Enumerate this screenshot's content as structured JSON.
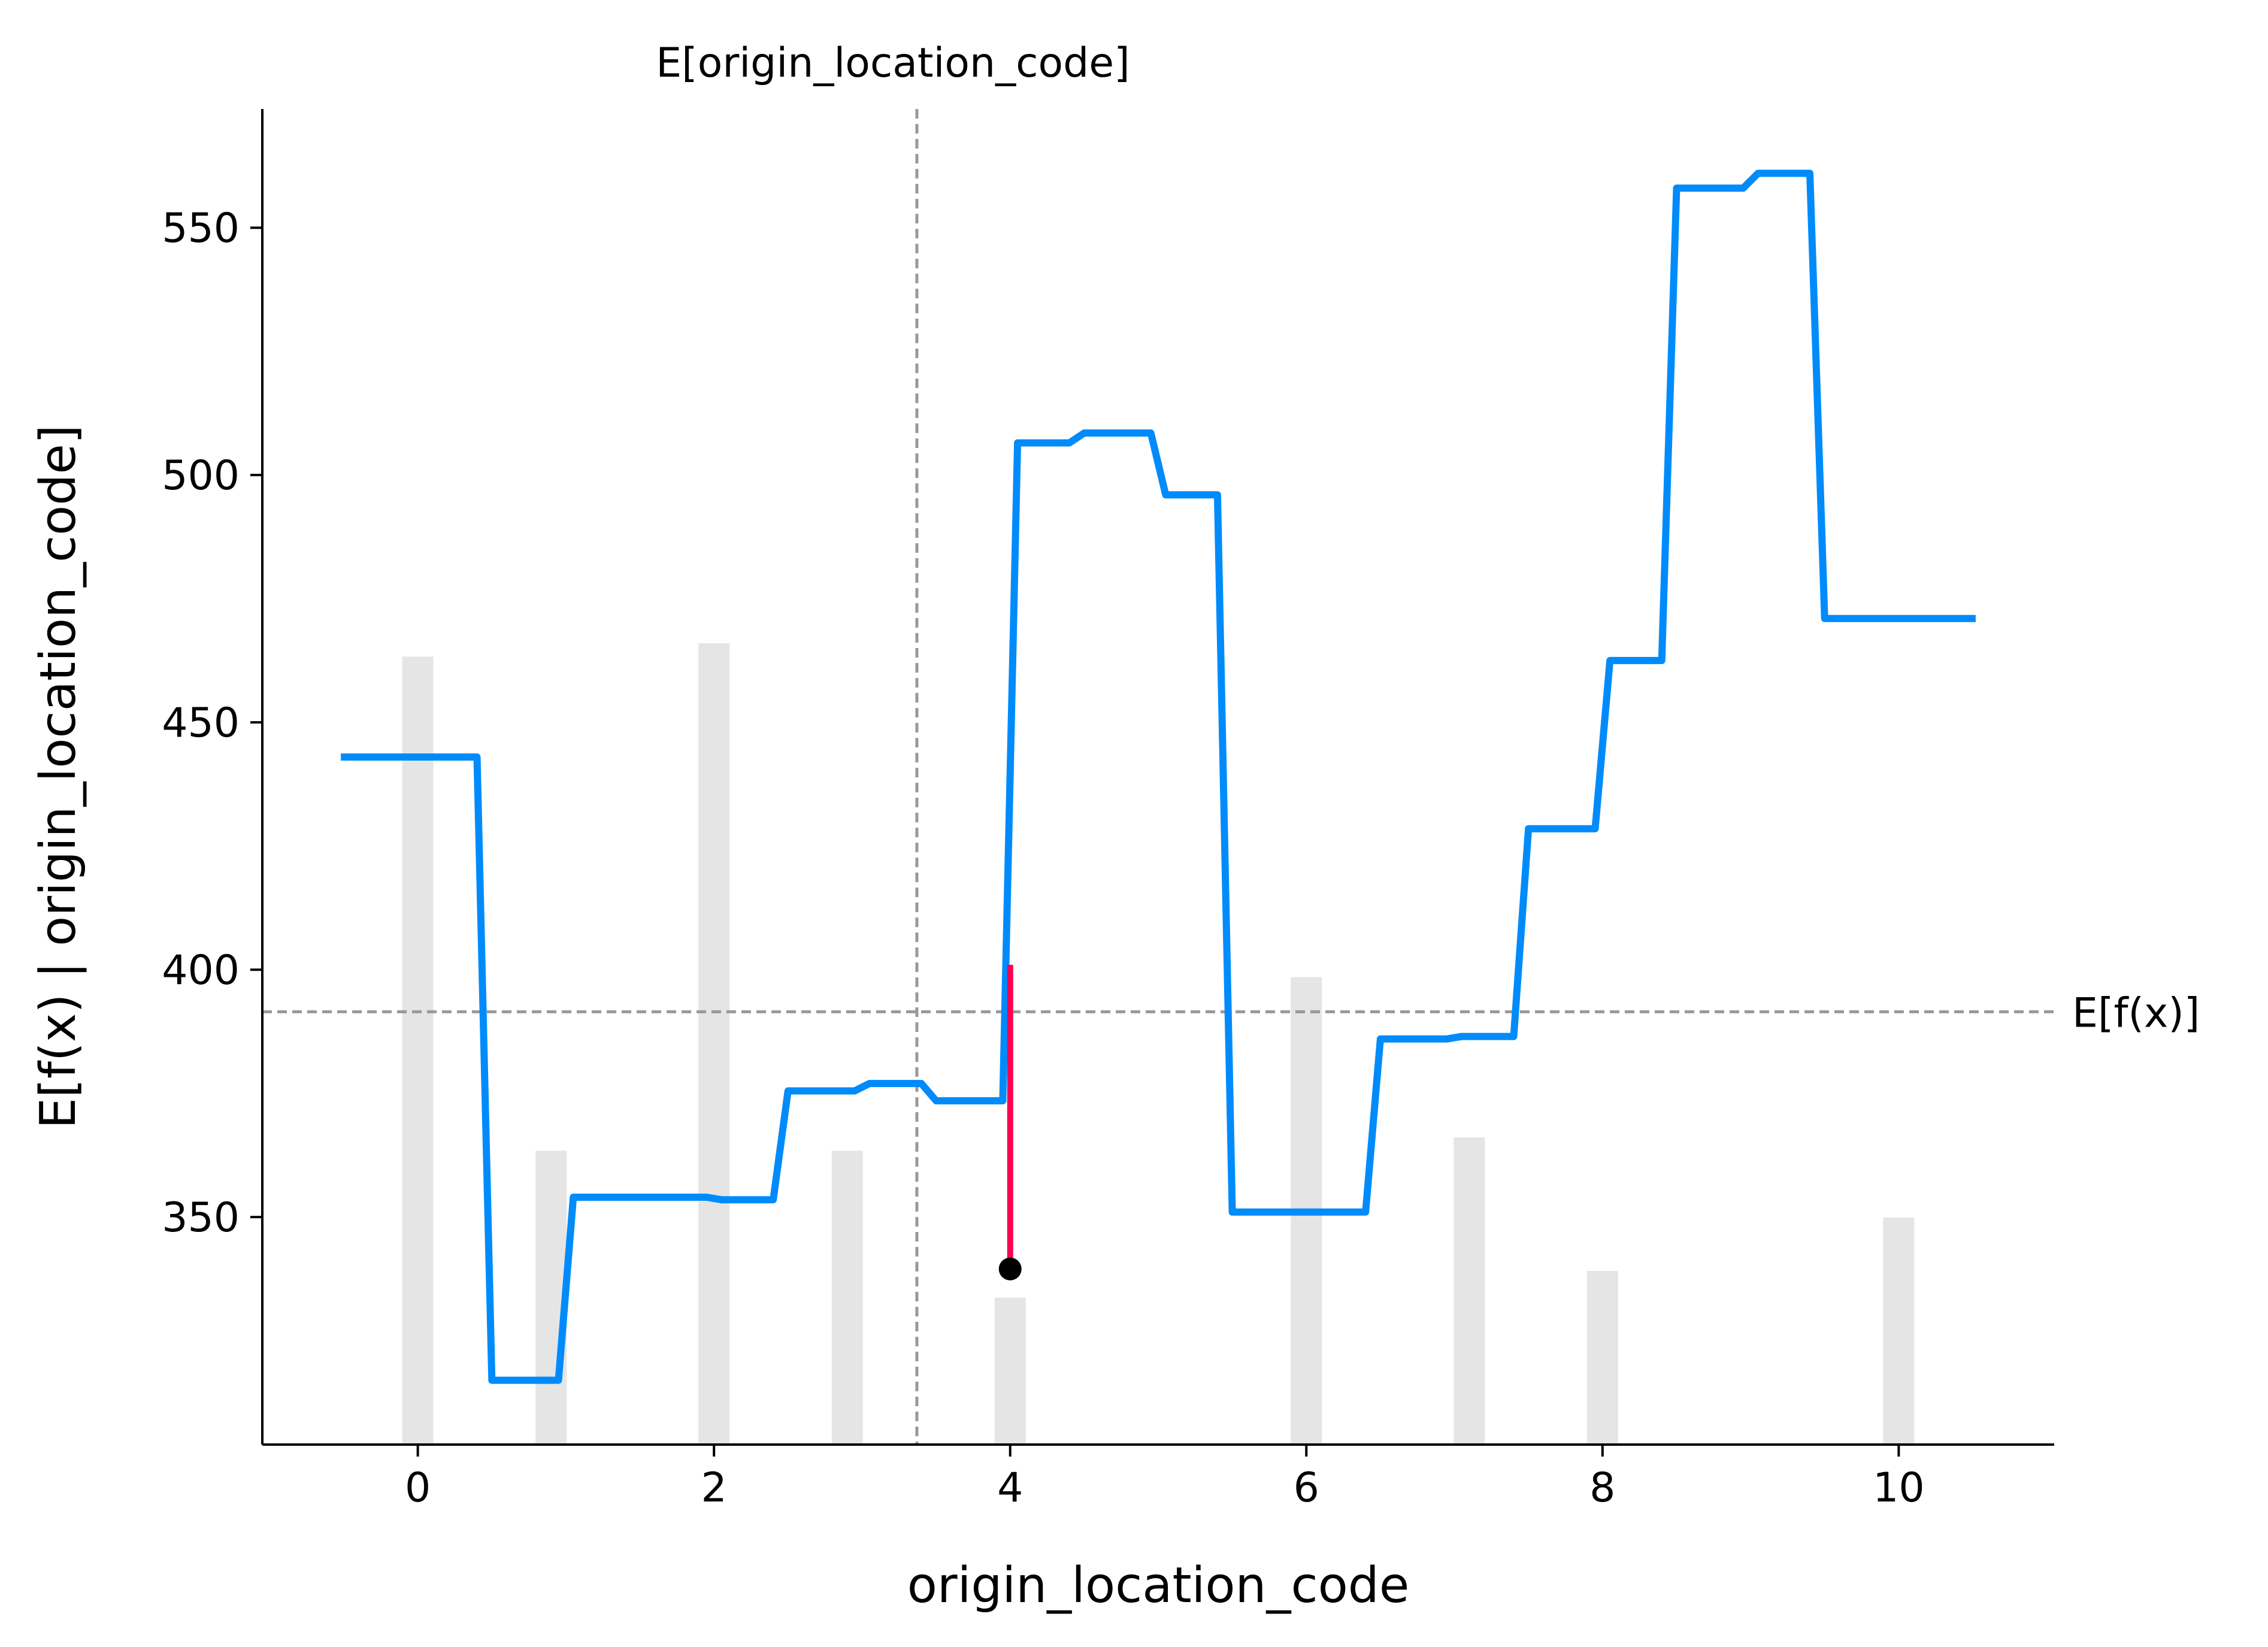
{
  "chart_data": {
    "type": "line",
    "xlabel": "origin_location_code",
    "ylabel": "E[f(x) | origin_location_code]",
    "xlim": [
      -1.05,
      11.05
    ],
    "ylim": [
      304,
      574
    ],
    "x_ticks": [
      0,
      2,
      4,
      6,
      8,
      10
    ],
    "y_ticks": [
      350,
      400,
      450,
      500,
      550
    ],
    "grid": false,
    "colors": {
      "line": "#008bfb",
      "highlight": "#ff0051",
      "reference": "#999999",
      "hist": "#e5e5e5",
      "point": "#000000"
    },
    "series": [
      {
        "x": [
          -0.52,
          0.4,
          0.5,
          0.95,
          1.05,
          1.5,
          1.95,
          2.05,
          2.4,
          2.5,
          2.95,
          3.05,
          3.4,
          3.5,
          3.95,
          4.05,
          4.4,
          4.5,
          4.95,
          5.05,
          5.4,
          5.5,
          5.95,
          6.05,
          6.4,
          6.5,
          6.95,
          7.05,
          7.4,
          7.5,
          7.95,
          8.05,
          8.4,
          8.5,
          8.95,
          9.05,
          9.4,
          9.5,
          9.95,
          10.05,
          10.52
        ],
        "y": [
          443,
          443,
          317,
          317,
          354,
          354,
          354,
          353.5,
          353.5,
          375.5,
          375.5,
          377,
          377,
          373.5,
          373.5,
          506.5,
          506.5,
          508.5,
          508.5,
          496,
          496,
          351,
          351,
          351,
          351,
          386,
          386,
          386.5,
          386.5,
          428.5,
          428.5,
          462.5,
          462.5,
          558,
          558,
          561,
          561,
          471,
          471,
          471,
          471
        ]
      }
    ],
    "histogram": {
      "x": [
        0,
        0.9,
        2,
        2.9,
        4,
        6,
        7.1,
        8,
        10
      ],
      "heights": [
        0.59,
        0.22,
        0.6,
        0.22,
        0.11,
        0.35,
        0.23,
        0.13,
        0.17
      ]
    },
    "expected_x": 3.37,
    "expected_fx": 391.5,
    "sample_point": {
      "x": 4,
      "y": 339.5
    },
    "sample_line_top": 401,
    "annotations": {
      "expected_x_label": "E[origin_location_code]",
      "expected_fx_label": "E[f(x)]"
    }
  }
}
